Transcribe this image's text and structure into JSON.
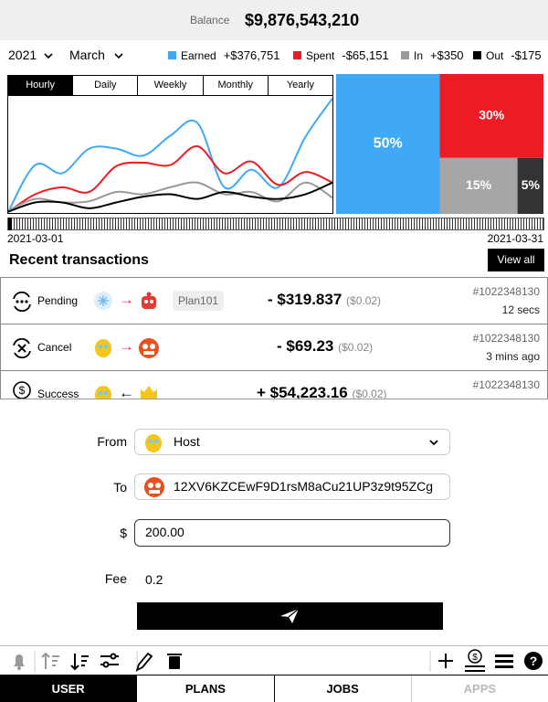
{
  "balance": {
    "label": "Balance",
    "value": "$9,876,543,210"
  },
  "filters": {
    "year": "2021",
    "month": "March"
  },
  "period_tabs": [
    "Hourly",
    "Daily",
    "Weekly",
    "Monthly",
    "Yearly"
  ],
  "chart_data": [
    {
      "type": "line",
      "categories": [
        null,
        null,
        null,
        null,
        null,
        null,
        null,
        null,
        null,
        null,
        null,
        null,
        null
      ],
      "ylim": [
        0,
        100
      ],
      "series": [
        {
          "name": "Earned",
          "total": "+$376,751",
          "color": "#3fa9f5",
          "values": [
            1,
            41,
            34,
            55,
            55,
            49,
            66,
            77,
            22,
            37,
            22,
            65,
            98
          ]
        },
        {
          "name": "Spent",
          "total": "-$65,151",
          "color": "#ed1c24",
          "values": [
            1,
            16,
            22,
            18,
            40,
            43,
            41,
            57,
            34,
            44,
            24,
            35,
            26
          ]
        },
        {
          "name": "In",
          "total": "+$350",
          "color": "#999999",
          "values": [
            2,
            12,
            9,
            10,
            18,
            16,
            22,
            26,
            16,
            18,
            10,
            26,
            13
          ]
        },
        {
          "name": "Out",
          "total": "-$175",
          "color": "#000000",
          "values": [
            1,
            9,
            9,
            4,
            9,
            14,
            16,
            12,
            18,
            14,
            12,
            16,
            26
          ]
        }
      ]
    },
    {
      "type": "treemap",
      "values": [
        50,
        30,
        15,
        5
      ],
      "value_labels": [
        "50%",
        "30%",
        "15%",
        "5%"
      ],
      "colors": [
        "#3fa9f5",
        "#ed1c24",
        "#a6a6a6",
        "#333333"
      ]
    }
  ],
  "date_range": [
    "2021-03-01",
    "2021-03-31"
  ],
  "transactions": {
    "title": "Recent transactions",
    "view_all": "View all",
    "items": [
      {
        "status": "Pending",
        "plan": "Plan101",
        "amount": "- $319.837",
        "fee": "($0.02)",
        "id": "#1022348130",
        "time": "12 secs"
      },
      {
        "status": "Cancel",
        "amount": "- $69.23",
        "fee": "($0.02)",
        "id": "#1022348130",
        "time": "3 mins ago"
      },
      {
        "status": "Success",
        "amount": "+ $54,223.16",
        "fee": "($0.02)",
        "id": "#1022348130"
      }
    ]
  },
  "form": {
    "from_label": "From",
    "from_value": "Host",
    "to_label": "To",
    "to_value": "12XV6KZCEwF9D1rsM8aCu21UP3z9t95ZCg",
    "amount_label": "$",
    "amount_value": "200.00",
    "fee_label": "Fee",
    "fee_value": "0.2"
  },
  "bottom_tabs": [
    "USER",
    "PLANS",
    "JOBS",
    "APPS"
  ]
}
